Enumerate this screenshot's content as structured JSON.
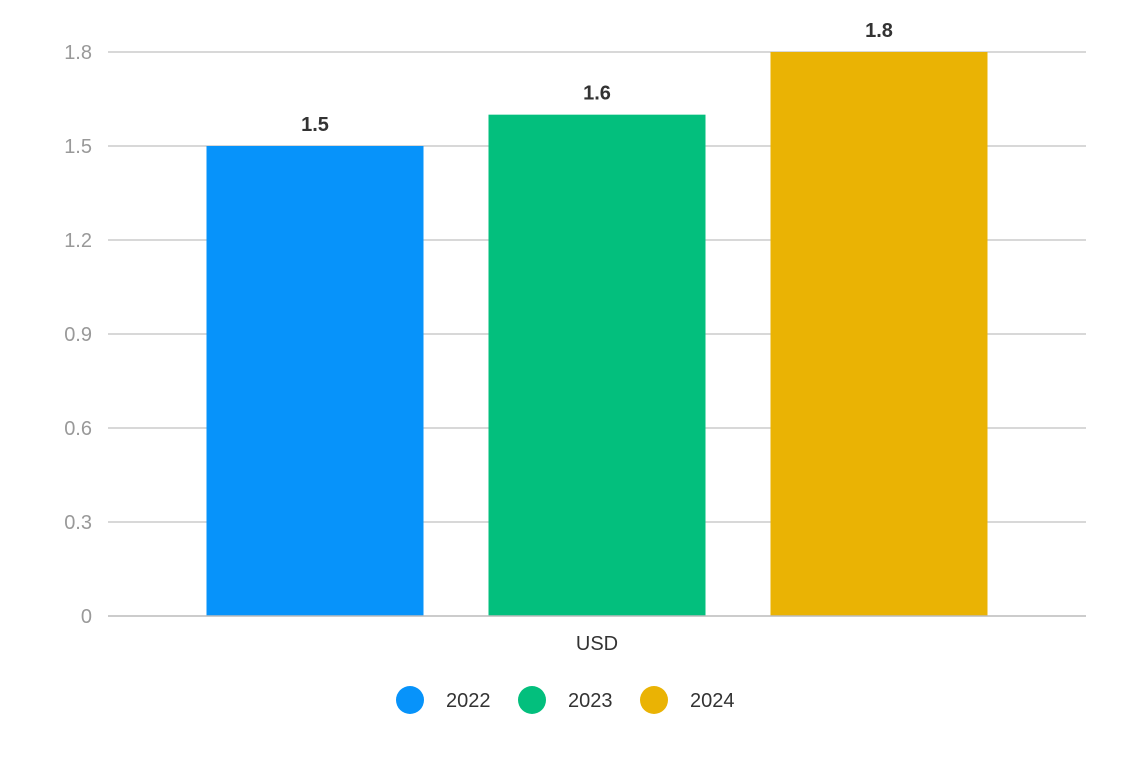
{
  "chart_data": {
    "type": "bar",
    "categories": [
      "USD"
    ],
    "series": [
      {
        "name": "2022",
        "values": [
          1.5
        ],
        "color": "#0793fa"
      },
      {
        "name": "2023",
        "values": [
          1.6
        ],
        "color": "#03bf7d"
      },
      {
        "name": "2024",
        "values": [
          1.8
        ],
        "color": "#eab304"
      }
    ],
    "ylim": [
      0,
      1.8
    ],
    "yticks": [
      "0",
      "0.3",
      "0.6",
      "0.9",
      "1.2",
      "1.5",
      "1.8"
    ],
    "data_labels": [
      "1.5",
      "1.6",
      "1.8"
    ],
    "grid": true,
    "legend_position": "bottom"
  }
}
